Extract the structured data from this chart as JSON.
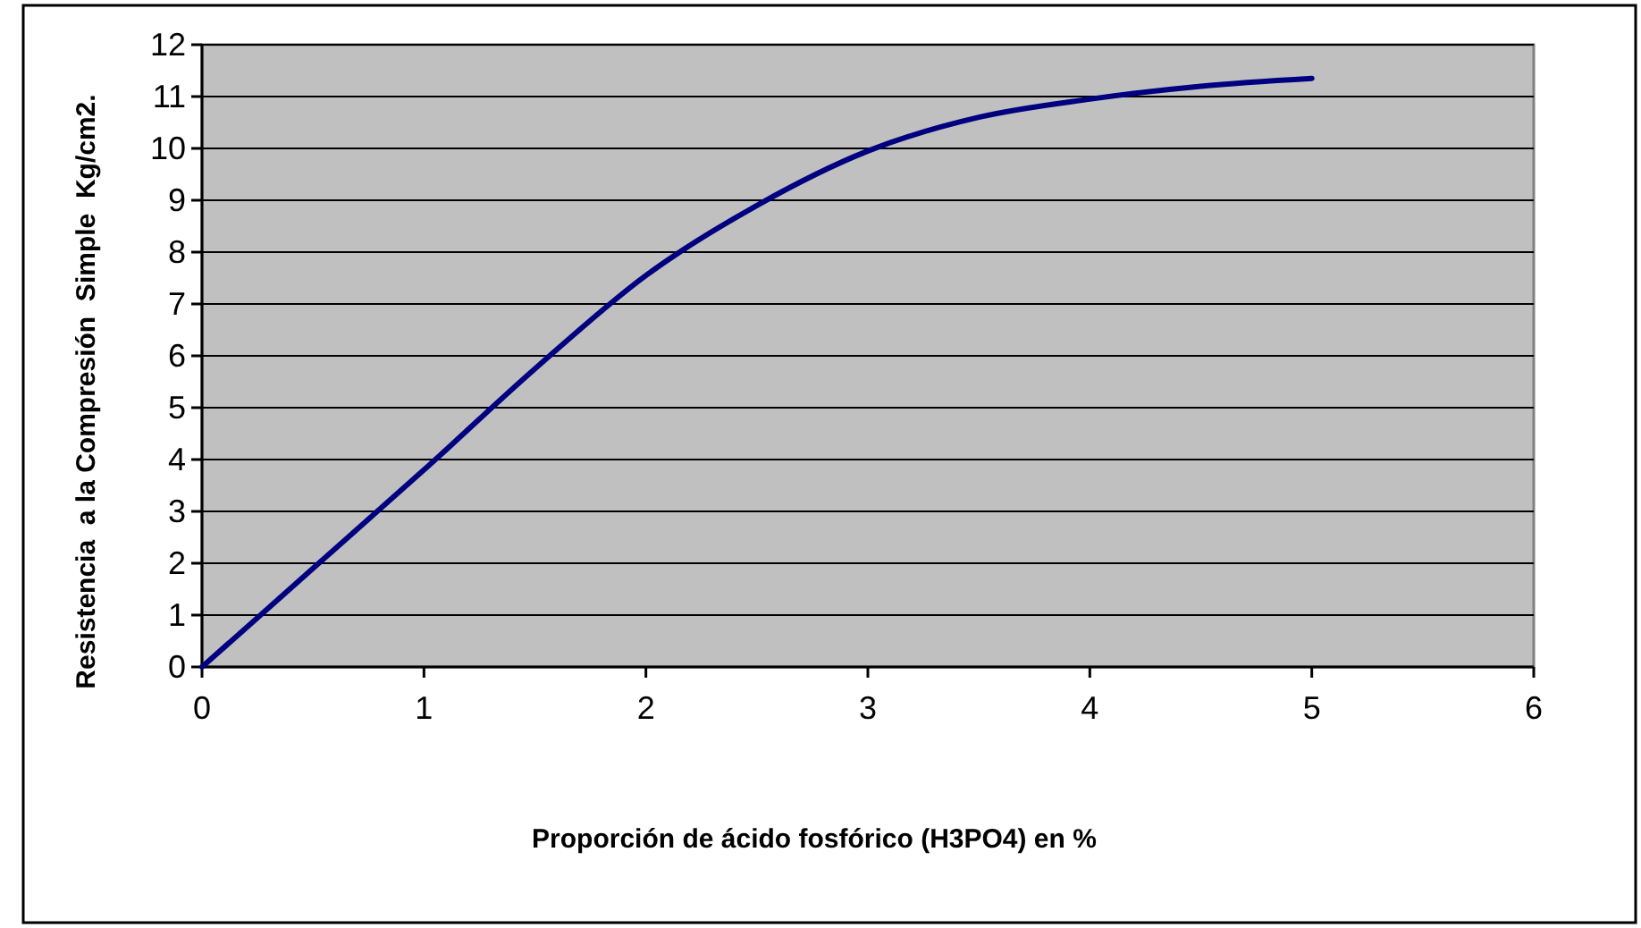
{
  "chart_data": {
    "type": "line",
    "xlabel": "Proporción de ácido fosfórico (H3PO4) en %",
    "ylabel": "Resistencia  a la Compresión  Simple  Kg/cm2.",
    "x": [
      0,
      0.5,
      1,
      1.5,
      2,
      2.5,
      3,
      3.5,
      4,
      4.5,
      5
    ],
    "series": [
      {
        "color": "#000080",
        "values": [
          0,
          1.9,
          3.8,
          5.75,
          7.55,
          8.9,
          9.95,
          10.6,
          10.95,
          11.2,
          11.35
        ]
      }
    ],
    "xlim": [
      0,
      6
    ],
    "xticks": [
      0,
      1,
      2,
      3,
      4,
      5,
      6
    ],
    "ylim": [
      0,
      12
    ],
    "yticks": [
      0,
      1,
      2,
      3,
      4,
      5,
      6,
      7,
      8,
      9,
      10,
      11,
      12
    ],
    "grid": "y",
    "marker": "none",
    "line_style": "solid"
  }
}
